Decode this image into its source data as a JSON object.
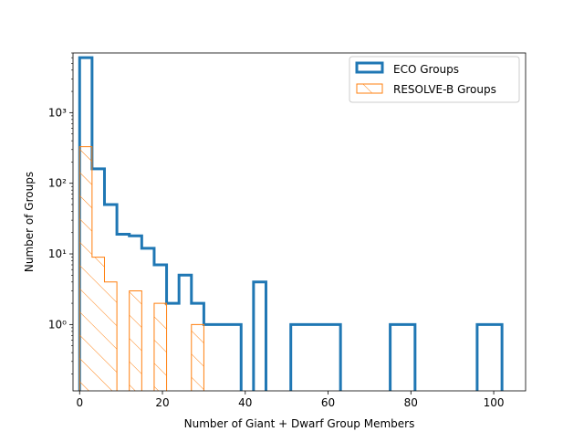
{
  "chart_data": {
    "type": "histogram",
    "xlabel": "Number of Giant + Dwarf Group Members",
    "ylabel": "Number of Groups",
    "xlim": [
      -1.6,
      107.7
    ],
    "ylim": [
      0.115,
      7000
    ],
    "yscale": "log",
    "x_ticks": [
      0,
      20,
      40,
      60,
      80,
      100
    ],
    "y_ticks": [
      {
        "value": 1,
        "label": "10⁰"
      },
      {
        "value": 10,
        "label": "10¹"
      },
      {
        "value": 100,
        "label": "10²"
      },
      {
        "value": 1000,
        "label": "10³"
      }
    ],
    "legend_position": "top-right",
    "series": [
      {
        "name": "ECO Groups",
        "color": "#1f77b4",
        "style": "step outline",
        "bin_edges": [
          0,
          3,
          6,
          9,
          12,
          15,
          18,
          21,
          24,
          27,
          30,
          33,
          36,
          39,
          42,
          45,
          48,
          51,
          54,
          57,
          60,
          63,
          66,
          69,
          72,
          75,
          78,
          81,
          84,
          87,
          90,
          93,
          96,
          99,
          102
        ],
        "counts": [
          6000,
          160,
          50,
          19,
          18,
          12,
          7,
          2,
          5,
          2,
          1,
          1,
          1,
          0,
          4,
          0,
          0,
          1,
          1,
          1,
          1,
          0,
          0,
          0,
          0,
          1,
          1,
          0,
          0,
          0,
          0,
          0,
          1,
          1
        ]
      },
      {
        "name": "RESOLVE-B Groups",
        "color": "#ff7f0e",
        "style": "hatched outline",
        "bin_edges": [
          0,
          3,
          6,
          9,
          12,
          15,
          18,
          21,
          24,
          27,
          30
        ],
        "counts": [
          330,
          9,
          4,
          0,
          3,
          0,
          2,
          0,
          0,
          1
        ]
      }
    ]
  }
}
